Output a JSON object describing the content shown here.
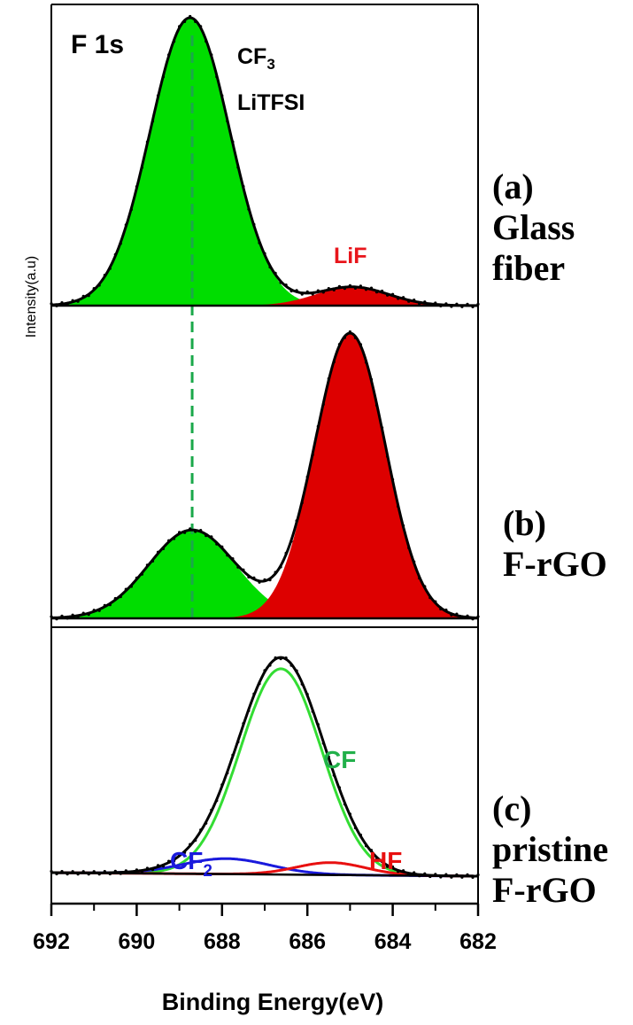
{
  "chart_data": {
    "type": "line",
    "title": "F 1s",
    "xlabel": "Binding Energy(eV)",
    "ylabel": "Intensity(a.u)",
    "xlim": [
      692,
      682
    ],
    "x_reversed": true,
    "x_ticks": [
      "692",
      "690",
      "688",
      "686",
      "684",
      "682"
    ],
    "y_ticks_shown": false,
    "guide_line": {
      "x": 688.7,
      "style": "dashed",
      "color": "#1aa84a"
    },
    "panels": [
      {
        "id": "a",
        "label_lines": [
          "(a)",
          "Glass",
          "fiber"
        ],
        "components": [
          {
            "name": "CF3 LiTFSI",
            "center": 688.75,
            "fwhm": 2.2,
            "amplitude": 1.0,
            "fill": "#00dd00"
          },
          {
            "name": "LiF",
            "center": 684.95,
            "fwhm": 2.0,
            "amplitude": 0.065,
            "fill": "#dd0000"
          }
        ],
        "annotations": [
          {
            "text": "CF",
            "sub": "3",
            "line2": "LiTFSI",
            "color": "#000000"
          },
          {
            "text": "LiF",
            "sub": "",
            "line2": "",
            "color": "#e8151b"
          }
        ]
      },
      {
        "id": "b",
        "label_lines": [
          "(b)",
          "F-rGO"
        ],
        "components": [
          {
            "name": "CF3 LiTFSI",
            "center": 688.7,
            "fwhm": 2.4,
            "amplitude": 0.31,
            "fill": "#00dd00"
          },
          {
            "name": "LiF",
            "center": 685.0,
            "fwhm": 1.95,
            "amplitude": 1.0,
            "fill": "#dd0000"
          }
        ],
        "annotations": []
      },
      {
        "id": "c",
        "label_lines": [
          "(c)",
          "pristine",
          "F-rGO"
        ],
        "components": [
          {
            "name": "CF",
            "center": 686.62,
            "fwhm": 2.25,
            "amplitude": 1.0,
            "line": "#33dd33"
          },
          {
            "name": "CF2",
            "center": 687.9,
            "fwhm": 2.4,
            "amplitude": 0.075,
            "line": "#1a1adc"
          },
          {
            "name": "HF",
            "center": 685.45,
            "fwhm": 1.9,
            "amplitude": 0.06,
            "line": "#e81010"
          }
        ],
        "annotations": [
          {
            "text": "CF",
            "sub": "",
            "line2": "",
            "color": "#22b04a"
          },
          {
            "text": "CF",
            "sub": "2",
            "line2": "",
            "color": "#1a1adc"
          },
          {
            "text": "HF",
            "sub": "",
            "line2": "",
            "color": "#e81010"
          }
        ]
      }
    ]
  }
}
